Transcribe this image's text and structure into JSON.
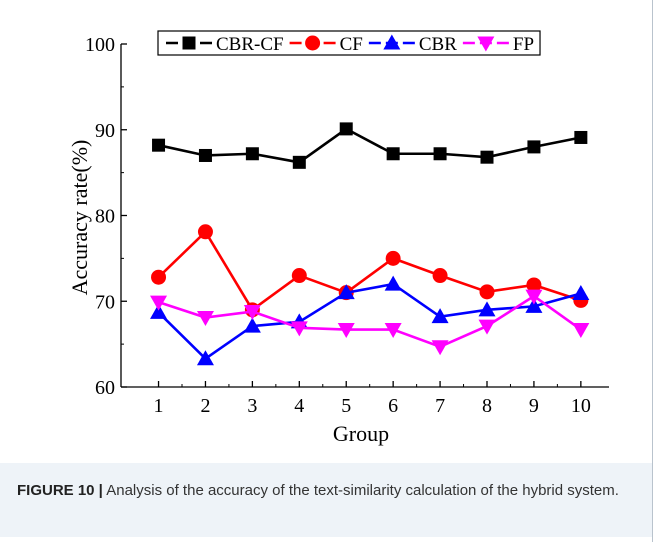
{
  "chart_data": {
    "type": "line",
    "xlabel": "Group",
    "ylabel": "Accuracy rate(%)",
    "x": [
      1,
      2,
      3,
      4,
      5,
      6,
      7,
      8,
      9,
      10
    ],
    "xlim": [
      0.2,
      10.6
    ],
    "ylim": [
      60,
      100
    ],
    "yticks": [
      60,
      70,
      80,
      90,
      100
    ],
    "grid": false,
    "legend_position": "top-center",
    "series": [
      {
        "name": "CBR-CF",
        "color": "#000000",
        "marker": "square",
        "values": [
          88.2,
          87.0,
          87.2,
          86.2,
          90.1,
          87.2,
          87.2,
          86.8,
          88.0,
          89.1
        ]
      },
      {
        "name": "CF",
        "color": "#ff0000",
        "marker": "circle",
        "values": [
          72.8,
          78.1,
          69.0,
          73.0,
          71.0,
          75.0,
          73.0,
          71.1,
          71.9,
          70.1
        ]
      },
      {
        "name": "CBR",
        "color": "#0000ff",
        "marker": "triangle-up",
        "values": [
          68.7,
          63.3,
          67.1,
          67.6,
          71.0,
          72.0,
          68.2,
          69.0,
          69.4,
          70.9
        ]
      },
      {
        "name": "FP",
        "color": "#ff00ff",
        "marker": "triangle-down",
        "values": [
          69.9,
          68.1,
          68.8,
          66.9,
          66.7,
          66.7,
          64.7,
          67.1,
          70.6,
          66.7
        ]
      }
    ]
  },
  "caption": {
    "label": "FIGURE 10 |",
    "text": " Analysis of the accuracy of the text-similarity calculation of the hybrid system."
  }
}
